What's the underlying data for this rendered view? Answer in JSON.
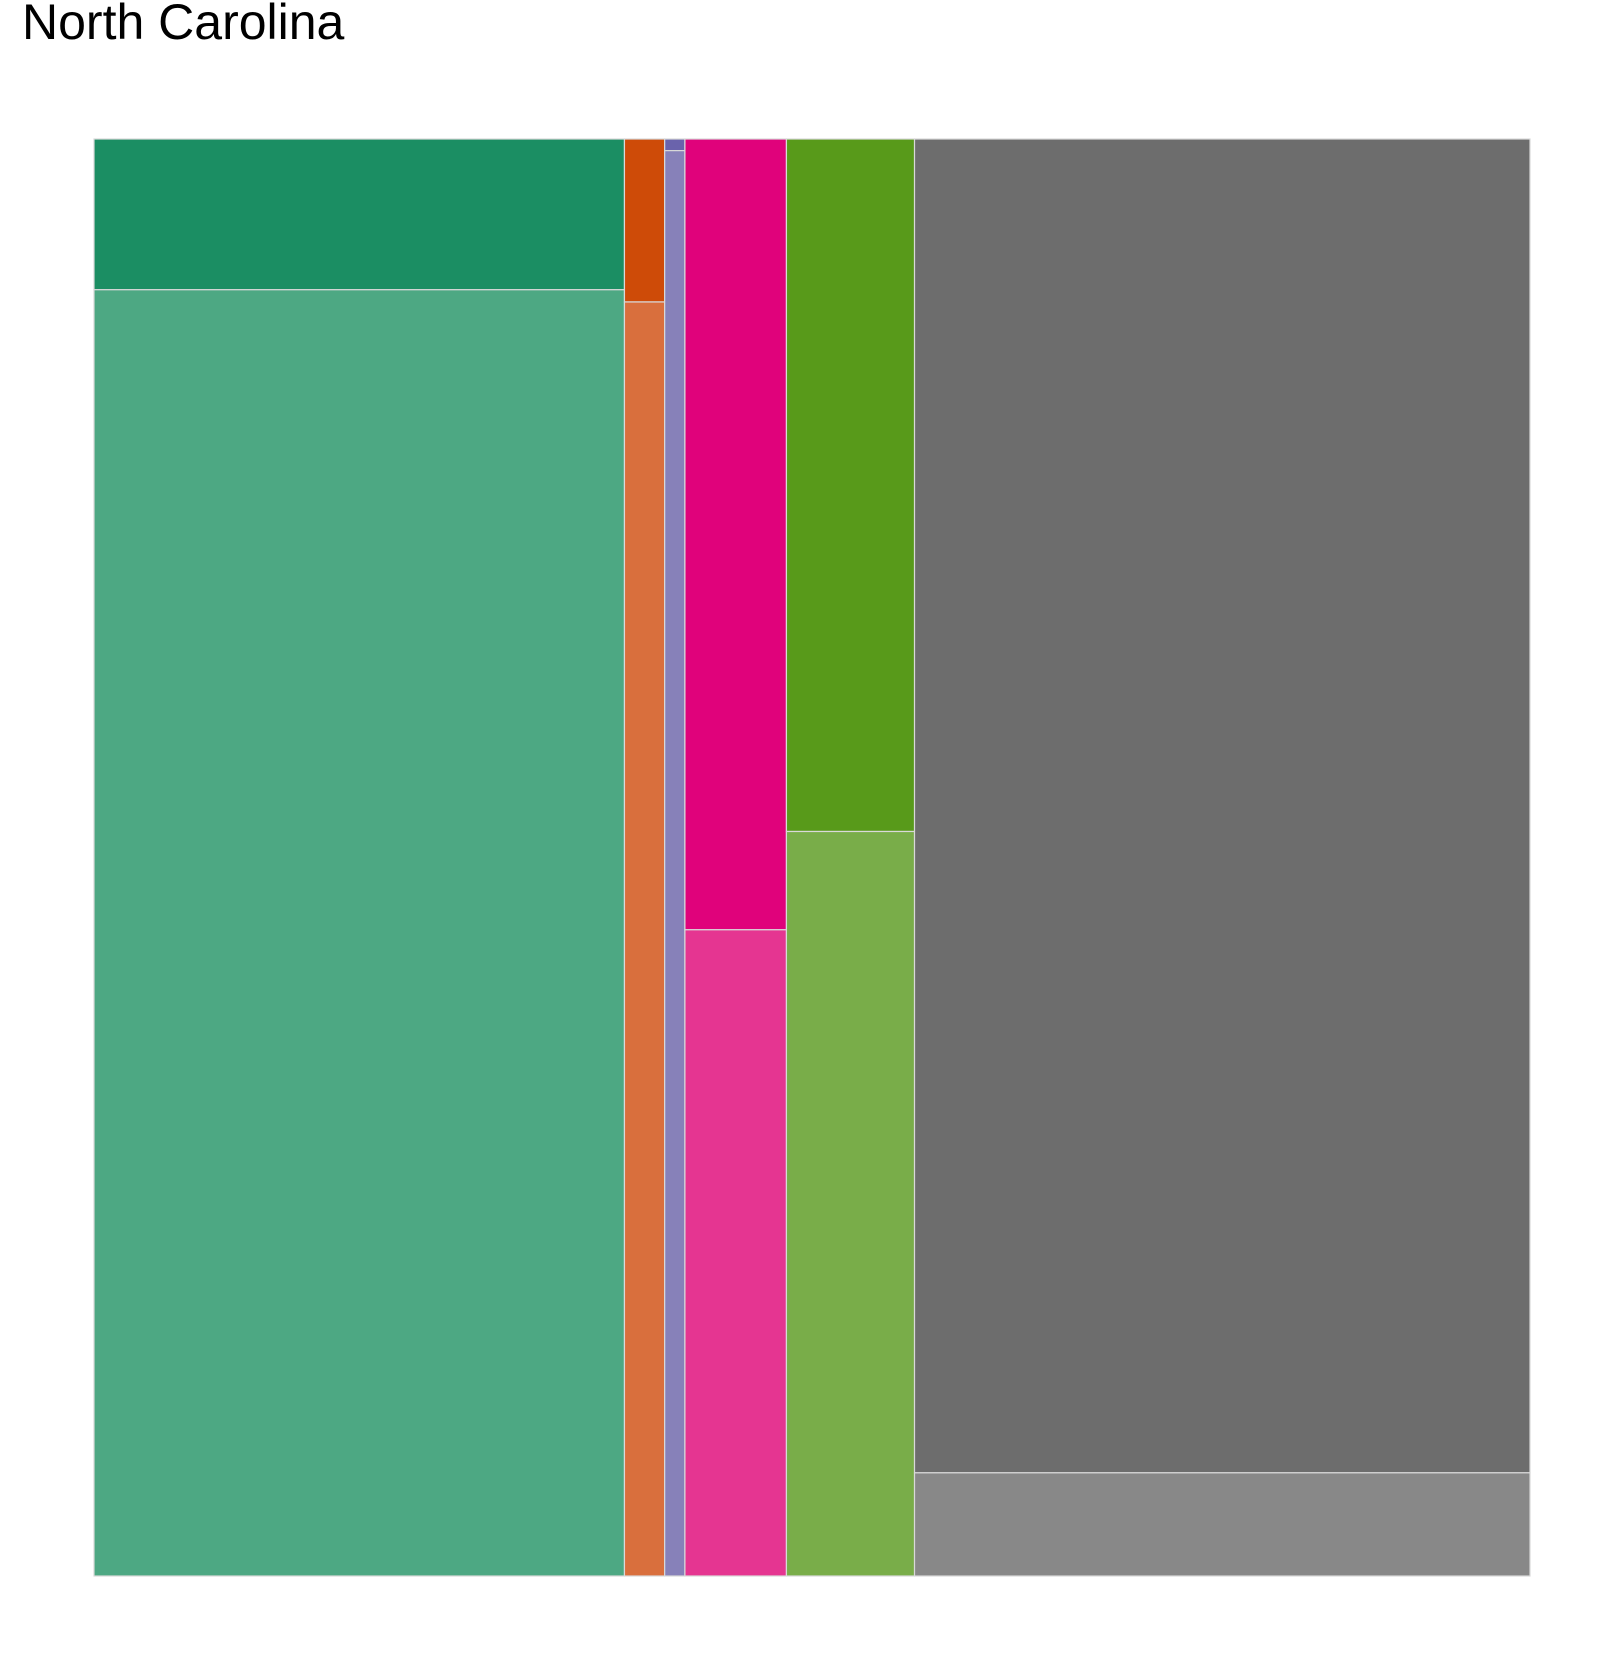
{
  "chart_data": {
    "type": "mosaic",
    "title": "North Carolina",
    "xlabel": "",
    "ylabel": "",
    "grid": false,
    "legend": "none",
    "tile_border_color": "#d9d9d9",
    "columns": [
      {
        "width": 0.3694,
        "segments": [
          {
            "share": 0.1049,
            "color": "#1b8e63"
          },
          {
            "share": 0.8951,
            "color": "#4da883"
          }
        ]
      },
      {
        "width": 0.028,
        "segments": [
          {
            "share": 0.1134,
            "color": "#ce4b08"
          },
          {
            "share": 0.8866,
            "color": "#d96f3d"
          }
        ]
      },
      {
        "width": 0.0141,
        "segments": [
          {
            "share": 0.0081,
            "color": "#6a63ac"
          },
          {
            "share": 0.9919,
            "color": "#8781b9"
          }
        ]
      },
      {
        "width": 0.0707,
        "segments": [
          {
            "share": 0.5503,
            "color": "#e0027b"
          },
          {
            "share": 0.4497,
            "color": "#e53591"
          }
        ]
      },
      {
        "width": 0.0892,
        "segments": [
          {
            "share": 0.4819,
            "color": "#589a1a"
          },
          {
            "share": 0.5181,
            "color": "#79ad49"
          }
        ]
      },
      {
        "width": 0.4286,
        "segments": [
          {
            "share": 0.9282,
            "color": "#6d6d6d"
          },
          {
            "share": 0.0718,
            "color": "#888888"
          }
        ]
      }
    ]
  }
}
